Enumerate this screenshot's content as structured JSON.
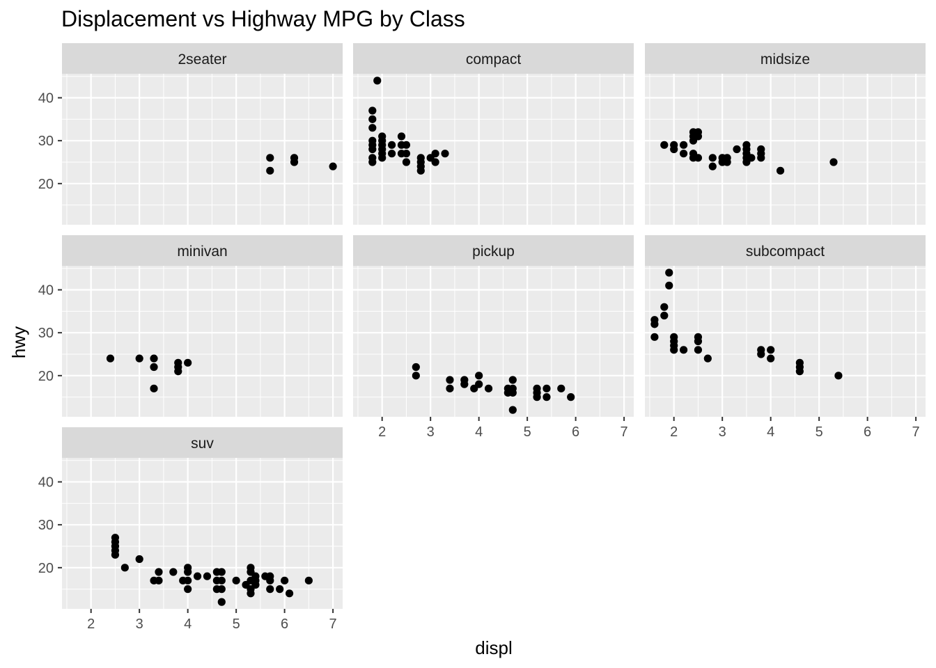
{
  "chart_data": {
    "type": "scatter",
    "title": "Displacement vs Highway MPG by Class",
    "xlabel": "displ",
    "ylabel": "hwy",
    "xlim": [
      1.4,
      7.2
    ],
    "ylim": [
      10.4,
      45.6
    ],
    "x_ticks": [
      2,
      3,
      4,
      5,
      6,
      7
    ],
    "y_ticks": [
      20,
      30,
      40
    ],
    "grid": true,
    "layout": "facet_wrap 3 columns",
    "marker_color": "#000000",
    "panel_background": "#ebebeb",
    "strip_background": "#d9d9d9",
    "panels": [
      {
        "name": "2seater",
        "points": [
          [
            5.7,
            26
          ],
          [
            5.7,
            23
          ],
          [
            6.2,
            26
          ],
          [
            6.2,
            25
          ],
          [
            7.0,
            24
          ]
        ]
      },
      {
        "name": "compact",
        "points": [
          [
            1.9,
            44
          ],
          [
            1.8,
            37
          ],
          [
            1.8,
            35
          ],
          [
            1.8,
            33
          ],
          [
            1.8,
            30
          ],
          [
            1.8,
            29
          ],
          [
            1.8,
            28
          ],
          [
            1.8,
            26
          ],
          [
            1.8,
            25
          ],
          [
            2.0,
            31
          ],
          [
            2.0,
            30
          ],
          [
            2.0,
            29
          ],
          [
            2.0,
            28
          ],
          [
            2.0,
            27
          ],
          [
            2.0,
            26
          ],
          [
            2.2,
            29
          ],
          [
            2.2,
            27
          ],
          [
            2.4,
            31
          ],
          [
            2.4,
            29
          ],
          [
            2.4,
            27
          ],
          [
            2.5,
            29
          ],
          [
            2.5,
            27
          ],
          [
            2.5,
            25
          ],
          [
            2.8,
            26
          ],
          [
            2.8,
            25
          ],
          [
            2.8,
            24
          ],
          [
            2.8,
            23
          ],
          [
            3.0,
            26
          ],
          [
            3.1,
            27
          ],
          [
            3.1,
            25
          ],
          [
            3.3,
            27
          ]
        ]
      },
      {
        "name": "midsize",
        "points": [
          [
            1.8,
            29
          ],
          [
            2.0,
            29
          ],
          [
            2.0,
            28
          ],
          [
            2.2,
            29
          ],
          [
            2.2,
            27
          ],
          [
            2.4,
            32
          ],
          [
            2.4,
            31
          ],
          [
            2.4,
            30
          ],
          [
            2.4,
            27
          ],
          [
            2.4,
            26
          ],
          [
            2.5,
            32
          ],
          [
            2.5,
            31
          ],
          [
            2.5,
            26
          ],
          [
            2.8,
            26
          ],
          [
            2.8,
            24
          ],
          [
            3.0,
            26
          ],
          [
            3.0,
            25
          ],
          [
            3.1,
            26
          ],
          [
            3.1,
            25
          ],
          [
            3.3,
            28
          ],
          [
            3.5,
            29
          ],
          [
            3.5,
            28
          ],
          [
            3.5,
            27
          ],
          [
            3.5,
            26
          ],
          [
            3.5,
            25
          ],
          [
            3.6,
            26
          ],
          [
            3.8,
            28
          ],
          [
            3.8,
            27
          ],
          [
            3.8,
            26
          ],
          [
            4.2,
            23
          ],
          [
            5.3,
            25
          ]
        ]
      },
      {
        "name": "minivan",
        "points": [
          [
            2.4,
            24
          ],
          [
            3.0,
            24
          ],
          [
            3.3,
            24
          ],
          [
            3.3,
            22
          ],
          [
            3.3,
            17
          ],
          [
            3.8,
            23
          ],
          [
            3.8,
            22
          ],
          [
            3.8,
            21
          ],
          [
            4.0,
            23
          ]
        ]
      },
      {
        "name": "pickup",
        "points": [
          [
            2.7,
            22
          ],
          [
            2.7,
            20
          ],
          [
            3.4,
            19
          ],
          [
            3.4,
            17
          ],
          [
            3.7,
            19
          ],
          [
            3.7,
            18
          ],
          [
            3.9,
            17
          ],
          [
            4.0,
            20
          ],
          [
            4.0,
            18
          ],
          [
            4.2,
            17
          ],
          [
            4.6,
            17
          ],
          [
            4.6,
            16
          ],
          [
            4.7,
            19
          ],
          [
            4.7,
            17
          ],
          [
            4.7,
            16
          ],
          [
            4.7,
            12
          ],
          [
            5.2,
            17
          ],
          [
            5.2,
            16
          ],
          [
            5.2,
            15
          ],
          [
            5.4,
            17
          ],
          [
            5.4,
            15
          ],
          [
            5.7,
            17
          ],
          [
            5.9,
            15
          ]
        ]
      },
      {
        "name": "subcompact",
        "points": [
          [
            1.6,
            33
          ],
          [
            1.6,
            32
          ],
          [
            1.6,
            29
          ],
          [
            1.8,
            36
          ],
          [
            1.8,
            34
          ],
          [
            1.9,
            44
          ],
          [
            1.9,
            41
          ],
          [
            2.0,
            29
          ],
          [
            2.0,
            28
          ],
          [
            2.0,
            27
          ],
          [
            2.0,
            26
          ],
          [
            2.2,
            26
          ],
          [
            2.5,
            29
          ],
          [
            2.5,
            28
          ],
          [
            2.5,
            26
          ],
          [
            2.7,
            24
          ],
          [
            3.8,
            26
          ],
          [
            3.8,
            25
          ],
          [
            4.0,
            26
          ],
          [
            4.0,
            24
          ],
          [
            4.6,
            23
          ],
          [
            4.6,
            22
          ],
          [
            4.6,
            21
          ],
          [
            5.4,
            20
          ]
        ]
      },
      {
        "name": "suv",
        "points": [
          [
            2.5,
            27
          ],
          [
            2.5,
            26
          ],
          [
            2.5,
            25
          ],
          [
            2.5,
            24
          ],
          [
            2.5,
            23
          ],
          [
            2.7,
            20
          ],
          [
            3.0,
            22
          ],
          [
            3.3,
            17
          ],
          [
            3.4,
            19
          ],
          [
            3.4,
            17
          ],
          [
            3.7,
            19
          ],
          [
            3.9,
            17
          ],
          [
            4.0,
            20
          ],
          [
            4.0,
            19
          ],
          [
            4.0,
            17
          ],
          [
            4.0,
            15
          ],
          [
            4.2,
            18
          ],
          [
            4.4,
            18
          ],
          [
            4.6,
            19
          ],
          [
            4.6,
            17
          ],
          [
            4.6,
            15
          ],
          [
            4.7,
            19
          ],
          [
            4.7,
            17
          ],
          [
            4.7,
            15
          ],
          [
            4.7,
            12
          ],
          [
            5.0,
            17
          ],
          [
            5.2,
            16
          ],
          [
            5.3,
            20
          ],
          [
            5.3,
            19
          ],
          [
            5.3,
            17
          ],
          [
            5.3,
            15
          ],
          [
            5.3,
            14
          ],
          [
            5.4,
            18
          ],
          [
            5.4,
            17
          ],
          [
            5.4,
            16
          ],
          [
            5.6,
            18
          ],
          [
            5.7,
            18
          ],
          [
            5.7,
            17
          ],
          [
            5.7,
            15
          ],
          [
            5.9,
            15
          ],
          [
            6.0,
            17
          ],
          [
            6.1,
            14
          ],
          [
            6.5,
            17
          ]
        ]
      }
    ]
  }
}
